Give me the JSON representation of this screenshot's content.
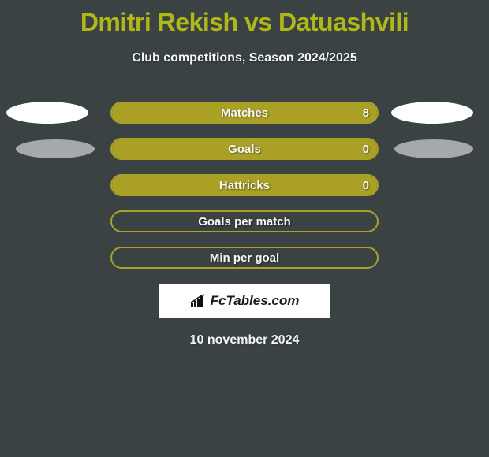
{
  "title": "Dmitri Rekish vs Datuashvili",
  "subtitle": "Club competitions, Season 2024/2025",
  "date": "10 november 2024",
  "logo_text": "FcTables.com",
  "colors": {
    "background": "#3a4244",
    "accent": "#b0b716",
    "bar_fill": "#a9a025",
    "text_light": "#f4f6f6",
    "ellipse": "#ffffff"
  },
  "rows": [
    {
      "label": "Matches",
      "value_right": "8",
      "fill_side": "right",
      "fill_pct": 100,
      "show_left_ellipse": true,
      "show_right_ellipse": true,
      "ellipse_small": false
    },
    {
      "label": "Goals",
      "value_right": "0",
      "fill_side": "right",
      "fill_pct": 100,
      "show_left_ellipse": true,
      "show_right_ellipse": true,
      "ellipse_small": true
    },
    {
      "label": "Hattricks",
      "value_right": "0",
      "fill_side": "right",
      "fill_pct": 100,
      "show_left_ellipse": false,
      "show_right_ellipse": false,
      "ellipse_small": false
    },
    {
      "label": "Goals per match",
      "value_right": "",
      "fill_side": "none",
      "fill_pct": 0,
      "show_left_ellipse": false,
      "show_right_ellipse": false,
      "ellipse_small": false
    },
    {
      "label": "Min per goal",
      "value_right": "",
      "fill_side": "none",
      "fill_pct": 0,
      "show_left_ellipse": false,
      "show_right_ellipse": false,
      "ellipse_small": false
    }
  ]
}
